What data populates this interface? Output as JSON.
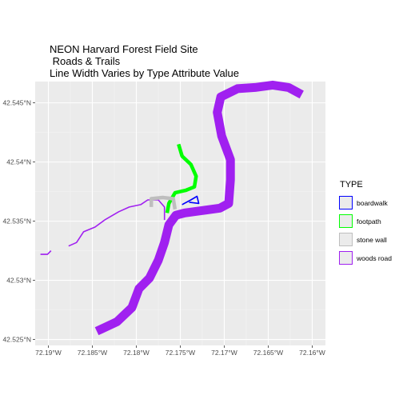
{
  "title_lines": [
    "NEON Harvard Forest Field Site",
    " Roads & Trails",
    "Line Width Varies by Type Attribute Value"
  ],
  "legend": {
    "title": "TYPE",
    "items": [
      {
        "label": "boardwalk",
        "color": "#0000ff"
      },
      {
        "label": "footpath",
        "color": "#00ff00"
      },
      {
        "label": "stone wall",
        "color": "#bebebe"
      },
      {
        "label": "woods road",
        "color": "#a020f0"
      }
    ]
  },
  "chart_data": {
    "type": "map",
    "x_ticks": [
      {
        "value": -72.19,
        "label": "72.19°W"
      },
      {
        "value": -72.185,
        "label": "72.185°W"
      },
      {
        "value": -72.18,
        "label": "72.18°W"
      },
      {
        "value": -72.175,
        "label": "72.175°W"
      },
      {
        "value": -72.17,
        "label": "72.17°W"
      },
      {
        "value": -72.165,
        "label": "72.165°W"
      },
      {
        "value": -72.16,
        "label": "72.16°W"
      }
    ],
    "y_ticks": [
      {
        "value": 42.525,
        "label": "42.525°N"
      },
      {
        "value": 42.53,
        "label": "42.53°N"
      },
      {
        "value": 42.535,
        "label": "42.535°N"
      },
      {
        "value": 42.54,
        "label": "42.54°N"
      },
      {
        "value": 42.545,
        "label": "42.545°N"
      }
    ],
    "xlim": [
      -72.1915,
      -72.1585
    ],
    "ylim": [
      42.5245,
      42.5468
    ],
    "grid": true,
    "legend_position": "right",
    "features": [
      {
        "type": "woods road",
        "color": "#a020f0",
        "width": "wide",
        "coords": [
          [
            -72.1845,
            42.5257
          ],
          [
            -72.1822,
            42.5265
          ],
          [
            -72.1805,
            42.5277
          ],
          [
            -72.1797,
            42.5293
          ],
          [
            -72.1785,
            42.5302
          ],
          [
            -72.1775,
            42.5317
          ],
          [
            -72.1768,
            42.5332
          ],
          [
            -72.1763,
            42.5347
          ],
          [
            -72.1755,
            42.5355
          ],
          [
            -72.1745,
            42.5357
          ],
          [
            -72.1725,
            42.5359
          ],
          [
            -72.1705,
            42.5361
          ],
          [
            -72.1695,
            42.5365
          ],
          [
            -72.1693,
            42.5385
          ],
          [
            -72.1693,
            42.5402
          ],
          [
            -72.1703,
            42.5422
          ],
          [
            -72.1708,
            42.5442
          ],
          [
            -72.1704,
            42.5455
          ],
          [
            -72.1685,
            42.5462
          ],
          [
            -72.1665,
            42.5463
          ],
          [
            -72.1645,
            42.5465
          ],
          [
            -72.1627,
            42.5463
          ],
          [
            -72.1612,
            42.5457
          ]
        ]
      },
      {
        "type": "woods road",
        "color": "#a020f0",
        "width": "thin",
        "coords": [
          [
            -72.1877,
            42.5329
          ],
          [
            -72.1868,
            42.5332
          ],
          [
            -72.186,
            42.5341
          ],
          [
            -72.1847,
            42.5345
          ],
          [
            -72.1836,
            42.5351
          ],
          [
            -72.182,
            42.5358
          ],
          [
            -72.1808,
            42.5362
          ],
          [
            -72.1795,
            42.5364
          ],
          [
            -72.1787,
            42.5368
          ],
          [
            -72.1775,
            42.5368
          ],
          [
            -72.1768,
            42.5362
          ],
          [
            -72.1768,
            42.5351
          ]
        ]
      },
      {
        "type": "woods road",
        "color": "#a020f0",
        "width": "thin",
        "coords": [
          [
            -72.1909,
            42.5322
          ],
          [
            -72.1901,
            42.5322
          ],
          [
            -72.1897,
            42.5325
          ]
        ]
      },
      {
        "type": "footpath",
        "color": "#00ff00",
        "width": "medium",
        "coords": [
          [
            -72.1752,
            42.5415
          ],
          [
            -72.1748,
            42.5405
          ],
          [
            -72.1738,
            42.5398
          ],
          [
            -72.1732,
            42.5388
          ],
          [
            -72.1734,
            42.5379
          ],
          [
            -72.1744,
            42.5376
          ],
          [
            -72.1756,
            42.5374
          ],
          [
            -72.1763,
            42.5365
          ],
          [
            -72.1765,
            42.5357
          ]
        ]
      },
      {
        "type": "stone wall",
        "color": "#bebebe",
        "width": "medium",
        "coords": [
          [
            -72.1783,
            42.5362
          ],
          [
            -72.1783,
            42.5369
          ],
          [
            -72.177,
            42.537
          ],
          [
            -72.1758,
            42.5369
          ],
          [
            -72.1756,
            42.536
          ]
        ]
      },
      {
        "type": "boardwalk",
        "color": "#0000ff",
        "width": "thin",
        "coords": [
          [
            -72.1748,
            42.5364
          ],
          [
            -72.1738,
            42.5368
          ],
          [
            -72.1731,
            42.5371
          ],
          [
            -72.1729,
            42.5365
          ],
          [
            -72.174,
            42.5366
          ]
        ]
      }
    ]
  }
}
